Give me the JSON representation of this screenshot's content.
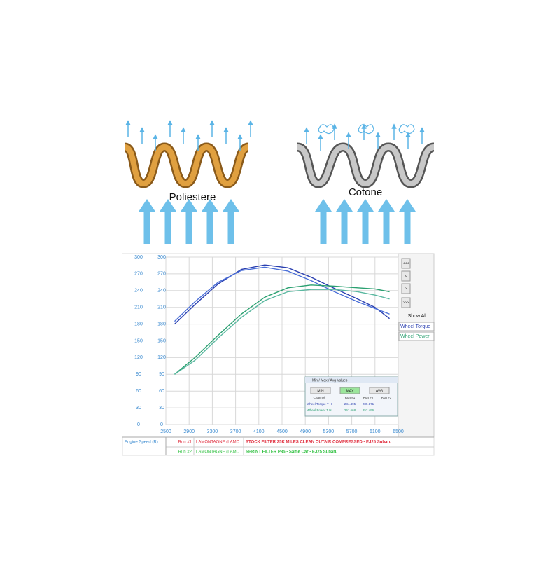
{
  "illustration": {
    "left_label": "Poliestere",
    "right_label": "Cotone"
  },
  "chart_data": {
    "type": "line",
    "x": [
      2650,
      3000,
      3400,
      3800,
      4200,
      4600,
      5000,
      5400,
      5800,
      6100,
      6350
    ],
    "series": [
      {
        "color": "#2a3fb0",
        "values": [
          180,
          215,
          252,
          278,
          286,
          281,
          264,
          244,
          225,
          210,
          190
        ]
      },
      {
        "color": "#4a6fd8",
        "values": [
          185,
          220,
          255,
          276,
          282,
          275,
          258,
          238,
          220,
          208,
          198
        ]
      },
      {
        "color": "#2aa070",
        "values": [
          90,
          120,
          160,
          198,
          228,
          245,
          250,
          248,
          245,
          243,
          238
        ]
      },
      {
        "color": "#5ab8a0",
        "values": [
          90,
          115,
          155,
          192,
          222,
          238,
          242,
          242,
          238,
          232,
          225
        ]
      }
    ],
    "xlim": [
      2500,
      6500
    ],
    "xticks": [
      2500,
      2900,
      3300,
      3700,
      4100,
      4500,
      4900,
      5300,
      5700,
      6100,
      6500
    ],
    "ylim": [
      0,
      300
    ],
    "yticks": [
      0,
      30,
      60,
      90,
      120,
      150,
      180,
      210,
      240,
      270,
      300
    ],
    "grid": true,
    "x_channel": "Engine Speed (R)",
    "side_panel": {
      "buttons": [
        "<<<",
        "<",
        ">",
        ">>>"
      ],
      "show_all": "Show All",
      "channels": [
        "Wheel Torque",
        "Wheel Power"
      ]
    },
    "runs": [
      {
        "run": "Run #1",
        "customer": "LAMONTAGNE (LAMC",
        "description": "STOCK FILTER 25K MILES CLEAN OUTAIR COMPRESSED - EJ25 Subaru"
      },
      {
        "run": "Run #2",
        "customer": "LAMONTAGNE (LAMC",
        "description": "SPRINT FILTER P85 - Same Car - EJ25 Subaru"
      }
    ],
    "dialog": {
      "title": "Min / Max / Avg Values",
      "buttons": [
        "MIN",
        "MAX",
        "AVG"
      ],
      "header": [
        "Channel",
        "Run #1",
        "Run #2",
        "Run #3"
      ],
      "rows": [
        [
          "Wheel Torque T H",
          "284.495",
          "289.171"
        ],
        [
          "Wheel Power T H",
          "251.668",
          "252.496"
        ]
      ]
    }
  }
}
